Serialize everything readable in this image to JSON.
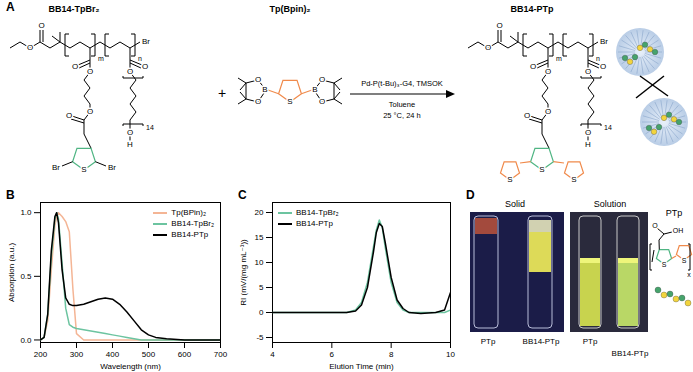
{
  "panel_labels": [
    "A",
    "B",
    "C",
    "D"
  ],
  "scheme": {
    "plus": "+",
    "reactant_1": {
      "label": "BB14-TpBr₂",
      "texts": {
        "ester_O": "O",
        "carbonyl_O": "O",
        "end": "Br",
        "side1_carbonyl_O": "O",
        "side1_O": "O",
        "side1_O2": "O",
        "side1_carbonyl_O2": "O",
        "ring_S": "S",
        "ring_left": "Br",
        "ring_right": "Br",
        "side2_carbonyl_O": "O",
        "side2_O": "O",
        "side2_end_O": "O",
        "side2_end_H": "H",
        "m": "m",
        "n": "n",
        "repeat": "14"
      }
    },
    "reactant_2": {
      "label": "Tp(Bpin)₂",
      "texts": {
        "ring_S": "S",
        "B_left": "B",
        "B_right": "B",
        "O_left_top": "O",
        "O_left_bottom": "O",
        "O_right_top": "O",
        "O_right_bottom": "O"
      }
    },
    "conditions": [
      "Pd-P(t-Bu)₃-G4, TMSOK",
      "Toluene",
      "25 °C, 24 h"
    ],
    "product": {
      "label": "BB14-PTp",
      "texts": {
        "ester_O": "O",
        "carbonyl_O": "O",
        "end": "Br",
        "side1_carbonyl_O": "O",
        "side1_O": "O",
        "side1_O2": "O",
        "side1_carbonyl_O2": "O",
        "ring_S": "S",
        "ring_left": "S",
        "ring_right": "S",
        "side2_carbonyl_O": "O",
        "side2_O": "O",
        "side2_end_O": "O",
        "side2_end_H": "H",
        "m": "m",
        "n": "n",
        "repeat": "14"
      }
    }
  },
  "chart_data": [
    {
      "type": "line",
      "xlabel": "Wavelength (nm)",
      "ylabel": "Absorption (a.u.)",
      "x": [
        200,
        210,
        220,
        230,
        240,
        245,
        250,
        260,
        270,
        280,
        290,
        300,
        320,
        340,
        360,
        380,
        400,
        420,
        440,
        460,
        480,
        500,
        520,
        550,
        600,
        650,
        700
      ],
      "series": [
        {
          "name": "Tp(BPin)₂",
          "color": "#f4b595",
          "values": [
            0,
            0.02,
            0.15,
            0.55,
            0.9,
            0.97,
            1.0,
            0.97,
            0.93,
            0.85,
            0.4,
            0.05,
            0,
            0,
            0,
            0,
            0,
            0,
            0,
            0,
            0,
            0,
            0,
            0,
            0,
            0,
            0
          ]
        },
        {
          "name": "BB14-TpBr₂",
          "color": "#6cc4a0",
          "values": [
            0,
            0.02,
            0.2,
            0.65,
            0.95,
            1.0,
            0.95,
            0.6,
            0.25,
            0.12,
            0.1,
            0.09,
            0.08,
            0.07,
            0.06,
            0.05,
            0.04,
            0.03,
            0.02,
            0.01,
            0,
            0,
            0,
            0,
            0,
            0,
            0
          ]
        },
        {
          "name": "BB14-PTp",
          "color": "#000000",
          "values": [
            0,
            0.02,
            0.2,
            0.7,
            0.97,
            1.0,
            0.92,
            0.55,
            0.33,
            0.28,
            0.27,
            0.27,
            0.28,
            0.3,
            0.32,
            0.33,
            0.32,
            0.28,
            0.22,
            0.15,
            0.08,
            0.04,
            0.02,
            0.01,
            0,
            0,
            0
          ]
        }
      ],
      "xlim": [
        200,
        700
      ],
      "xticks": [
        200,
        300,
        400,
        500,
        600,
        700
      ],
      "ylim": [
        -0.02,
        1.08
      ],
      "yticks": [
        {
          "value": 0,
          "label": "0.0"
        },
        {
          "value": 0.5,
          "label": "0.5"
        },
        {
          "value": 1,
          "label": "1.0"
        }
      ],
      "legend": "upper right"
    },
    {
      "type": "line",
      "xlabel": "Elution Time (min)",
      "ylabel": "RI (mV/(mg mL⁻¹))",
      "x": [
        4,
        5,
        6,
        6.5,
        6.8,
        7.0,
        7.2,
        7.4,
        7.5,
        7.6,
        7.7,
        7.8,
        8.0,
        8.2,
        8.4,
        8.6,
        9.0,
        9.5,
        9.8,
        10
      ],
      "series": [
        {
          "name": "BB14-TpBr₂",
          "color": "#6cc4a0",
          "values": [
            0,
            0,
            0,
            0,
            0.5,
            2,
            6,
            13,
            16.5,
            18.5,
            17,
            13,
            6,
            2,
            0.5,
            0,
            0,
            0,
            0,
            0.5
          ]
        },
        {
          "name": "BB14-PTp",
          "color": "#000000",
          "values": [
            0,
            0,
            0,
            0,
            0.3,
            1.5,
            5,
            12,
            16,
            17.8,
            17.2,
            14,
            7,
            2.5,
            0.8,
            0,
            -0.2,
            0,
            0.5,
            4
          ]
        }
      ],
      "xlim": [
        4,
        10
      ],
      "xticks": [
        4,
        6,
        8,
        10
      ],
      "ylim": [
        -6,
        22
      ],
      "yticks": [
        -5,
        0,
        5,
        10,
        15,
        20
      ],
      "legend": "upper left"
    }
  ],
  "photos": {
    "solid": {
      "title": "Solid",
      "labels": [
        "PTp",
        "BB14-PTp"
      ]
    },
    "solution": {
      "title": "Solution",
      "labels": [
        "PTp",
        "BB14-PTp"
      ]
    },
    "structure": {
      "label": "PTp",
      "texts": {
        "S_green": "S",
        "S_orange": "S",
        "O": "O",
        "OH": "OH",
        "x": "x"
      }
    }
  }
}
